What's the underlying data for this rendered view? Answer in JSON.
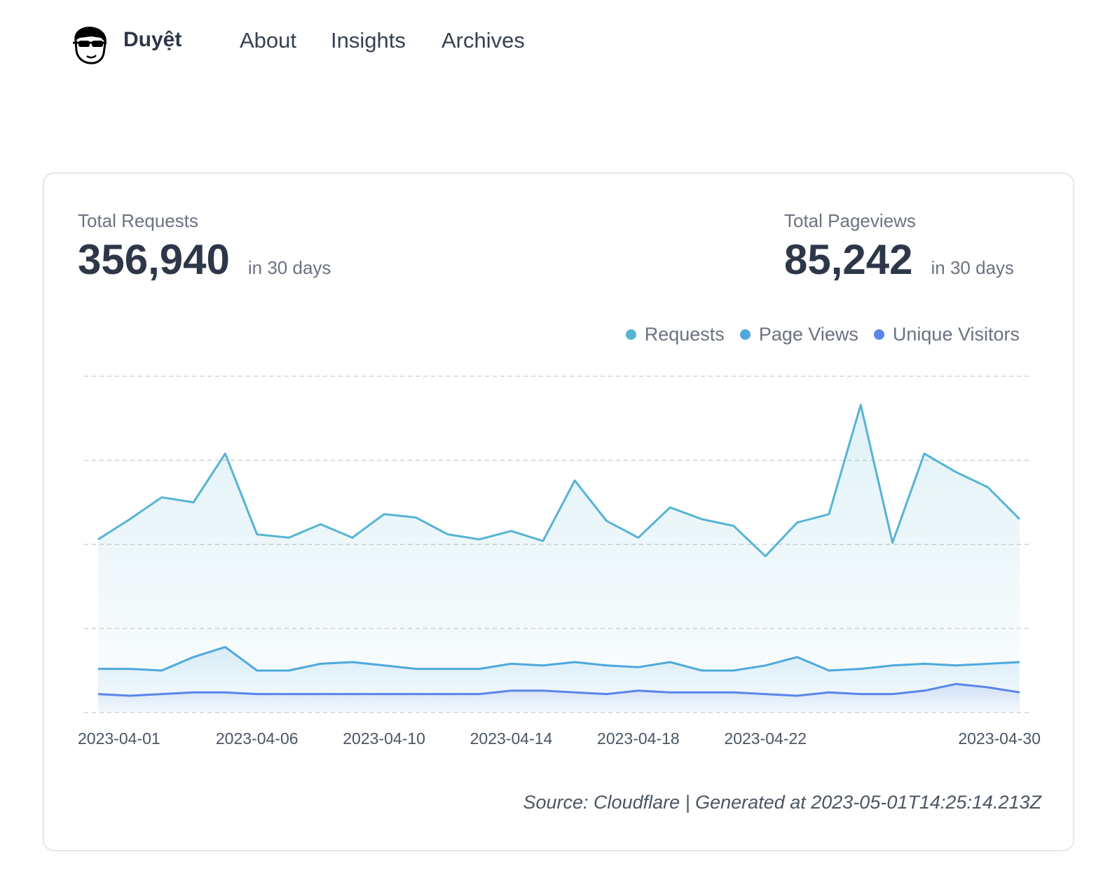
{
  "header": {
    "brand": "Duyệt",
    "nav": [
      "About",
      "Insights",
      "Archives"
    ]
  },
  "stats": [
    {
      "label": "Total Requests",
      "value": "356,940",
      "period": "in 30 days"
    },
    {
      "label": "Total Pageviews",
      "value": "85,242",
      "period": "in 30 days"
    }
  ],
  "chart_data": {
    "type": "area",
    "x": [
      "2023-04-01",
      "2023-04-02",
      "2023-04-03",
      "2023-04-04",
      "2023-04-05",
      "2023-04-06",
      "2023-04-07",
      "2023-04-08",
      "2023-04-09",
      "2023-04-10",
      "2023-04-11",
      "2023-04-12",
      "2023-04-13",
      "2023-04-14",
      "2023-04-15",
      "2023-04-16",
      "2023-04-17",
      "2023-04-18",
      "2023-04-19",
      "2023-04-20",
      "2023-04-21",
      "2023-04-22",
      "2023-04-23",
      "2023-04-24",
      "2023-04-25",
      "2023-04-26",
      "2023-04-27",
      "2023-04-28",
      "2023-04-29",
      "2023-04-30"
    ],
    "xticks": [
      "2023-04-01",
      "2023-04-06",
      "2023-04-10",
      "2023-04-14",
      "2023-04-18",
      "2023-04-22",
      "2023-04-30"
    ],
    "ylim": [
      0,
      20000
    ],
    "ygrid": [
      0,
      5000,
      10000,
      15000,
      20000
    ],
    "grid": true,
    "legend": "top-right",
    "series": [
      {
        "name": "Requests",
        "color": "#56b4d3",
        "values": [
          10300,
          11500,
          12800,
          12500,
          15400,
          10600,
          10400,
          11200,
          10400,
          11800,
          11600,
          10600,
          10300,
          10800,
          10200,
          13800,
          11400,
          10400,
          12200,
          11500,
          11100,
          9300,
          11300,
          11800,
          18300,
          10100,
          15400,
          14300,
          13400,
          11500
        ]
      },
      {
        "name": "Page Views",
        "color": "#4ea8de",
        "values": [
          2600,
          2600,
          2500,
          3300,
          3900,
          2500,
          2500,
          2900,
          3000,
          2800,
          2600,
          2600,
          2600,
          2900,
          2800,
          3000,
          2800,
          2700,
          3000,
          2500,
          2500,
          2800,
          3300,
          2500,
          2600,
          2800,
          2900,
          2800,
          2900,
          3000
        ]
      },
      {
        "name": "Unique Visitors",
        "color": "#5a85ea",
        "values": [
          1100,
          1000,
          1100,
          1200,
          1200,
          1100,
          1100,
          1100,
          1100,
          1100,
          1100,
          1100,
          1100,
          1300,
          1300,
          1200,
          1100,
          1300,
          1200,
          1200,
          1200,
          1100,
          1000,
          1200,
          1100,
          1100,
          1300,
          1700,
          1500,
          1200
        ]
      }
    ]
  },
  "footer": "Source: Cloudflare | Generated at 2023-05-01T14:25:14.213Z"
}
